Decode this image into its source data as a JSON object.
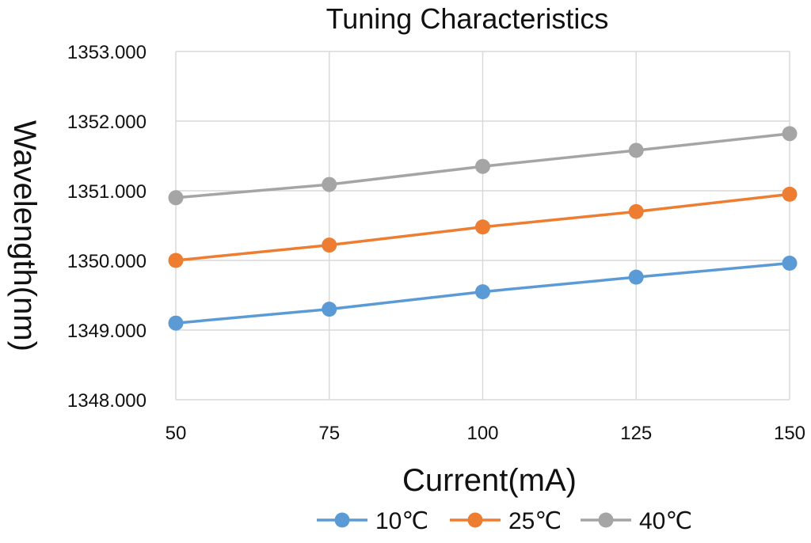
{
  "chart_data": {
    "type": "line",
    "title": "Tuning Characteristics",
    "xlabel": "Current(mA)",
    "ylabel": "Wavelength(nm)",
    "x": [
      50,
      75,
      100,
      125,
      150
    ],
    "x_tick_labels": [
      "50",
      "75",
      "100",
      "125",
      "150"
    ],
    "y_tick_labels": [
      "1348.000",
      "1349.000",
      "1350.000",
      "1351.000",
      "1352.000",
      "1353.000"
    ],
    "y_ticks": [
      1348,
      1349,
      1350,
      1351,
      1352,
      1353
    ],
    "xlim": [
      50,
      150
    ],
    "ylim": [
      1348,
      1353
    ],
    "grid": true,
    "legend_position": "bottom",
    "series": [
      {
        "name": "10℃",
        "color": "#5B9BD5",
        "values": [
          1349.1,
          1349.3,
          1349.55,
          1349.76,
          1349.96
        ]
      },
      {
        "name": "25℃",
        "color": "#ED7D31",
        "values": [
          1350.0,
          1350.22,
          1350.48,
          1350.7,
          1350.95
        ]
      },
      {
        "name": "40℃",
        "color": "#A5A5A5",
        "values": [
          1350.9,
          1351.09,
          1351.35,
          1351.58,
          1351.82
        ]
      }
    ]
  }
}
